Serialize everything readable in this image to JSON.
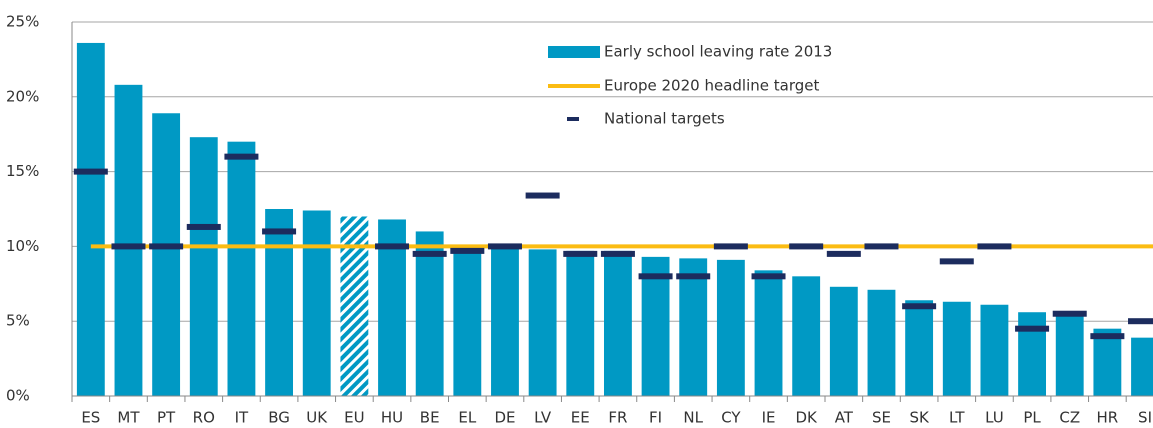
{
  "chart_data": {
    "type": "bar",
    "categories": [
      "ES",
      "MT",
      "PT",
      "RO",
      "IT",
      "BG",
      "UK",
      "EU",
      "HU",
      "BE",
      "EL",
      "DE",
      "LV",
      "EE",
      "FR",
      "FI",
      "NL",
      "CY",
      "IE",
      "DK",
      "AT",
      "SE",
      "SK",
      "LT",
      "LU",
      "PL",
      "CZ",
      "HR",
      "SI"
    ],
    "series": [
      {
        "name": "Early school leaving rate 2013",
        "type": "bar",
        "color": "#0099c4",
        "values": [
          23.6,
          20.8,
          18.9,
          17.3,
          17.0,
          12.5,
          12.4,
          12.0,
          11.8,
          11.0,
          10.1,
          9.9,
          9.8,
          9.7,
          9.7,
          9.3,
          9.2,
          9.1,
          8.4,
          8.0,
          7.3,
          7.1,
          6.4,
          6.3,
          6.1,
          5.6,
          5.4,
          4.5,
          3.9
        ]
      },
      {
        "name": "Europe 2020 headline target",
        "type": "line",
        "color": "#fbbc12",
        "value": 10
      },
      {
        "name": "National targets",
        "type": "dash",
        "color": "#1c2c5e",
        "values": [
          15,
          10,
          10,
          11.3,
          16,
          11,
          null,
          null,
          10,
          9.5,
          9.7,
          10,
          13.4,
          9.5,
          9.5,
          8,
          8,
          10,
          8,
          10,
          9.5,
          10,
          6,
          9,
          10,
          4.5,
          5.5,
          4,
          5
        ]
      }
    ],
    "hatched_index": 7,
    "ylim": [
      0,
      25
    ],
    "yticks": [
      {
        "value": 0,
        "label": "0%"
      },
      {
        "value": 5,
        "label": "5%"
      },
      {
        "value": 10,
        "label": "10%"
      },
      {
        "value": 15,
        "label": "15%"
      },
      {
        "value": 20,
        "label": "20%"
      },
      {
        "value": 25,
        "label": "25%"
      }
    ],
    "grid": true
  }
}
